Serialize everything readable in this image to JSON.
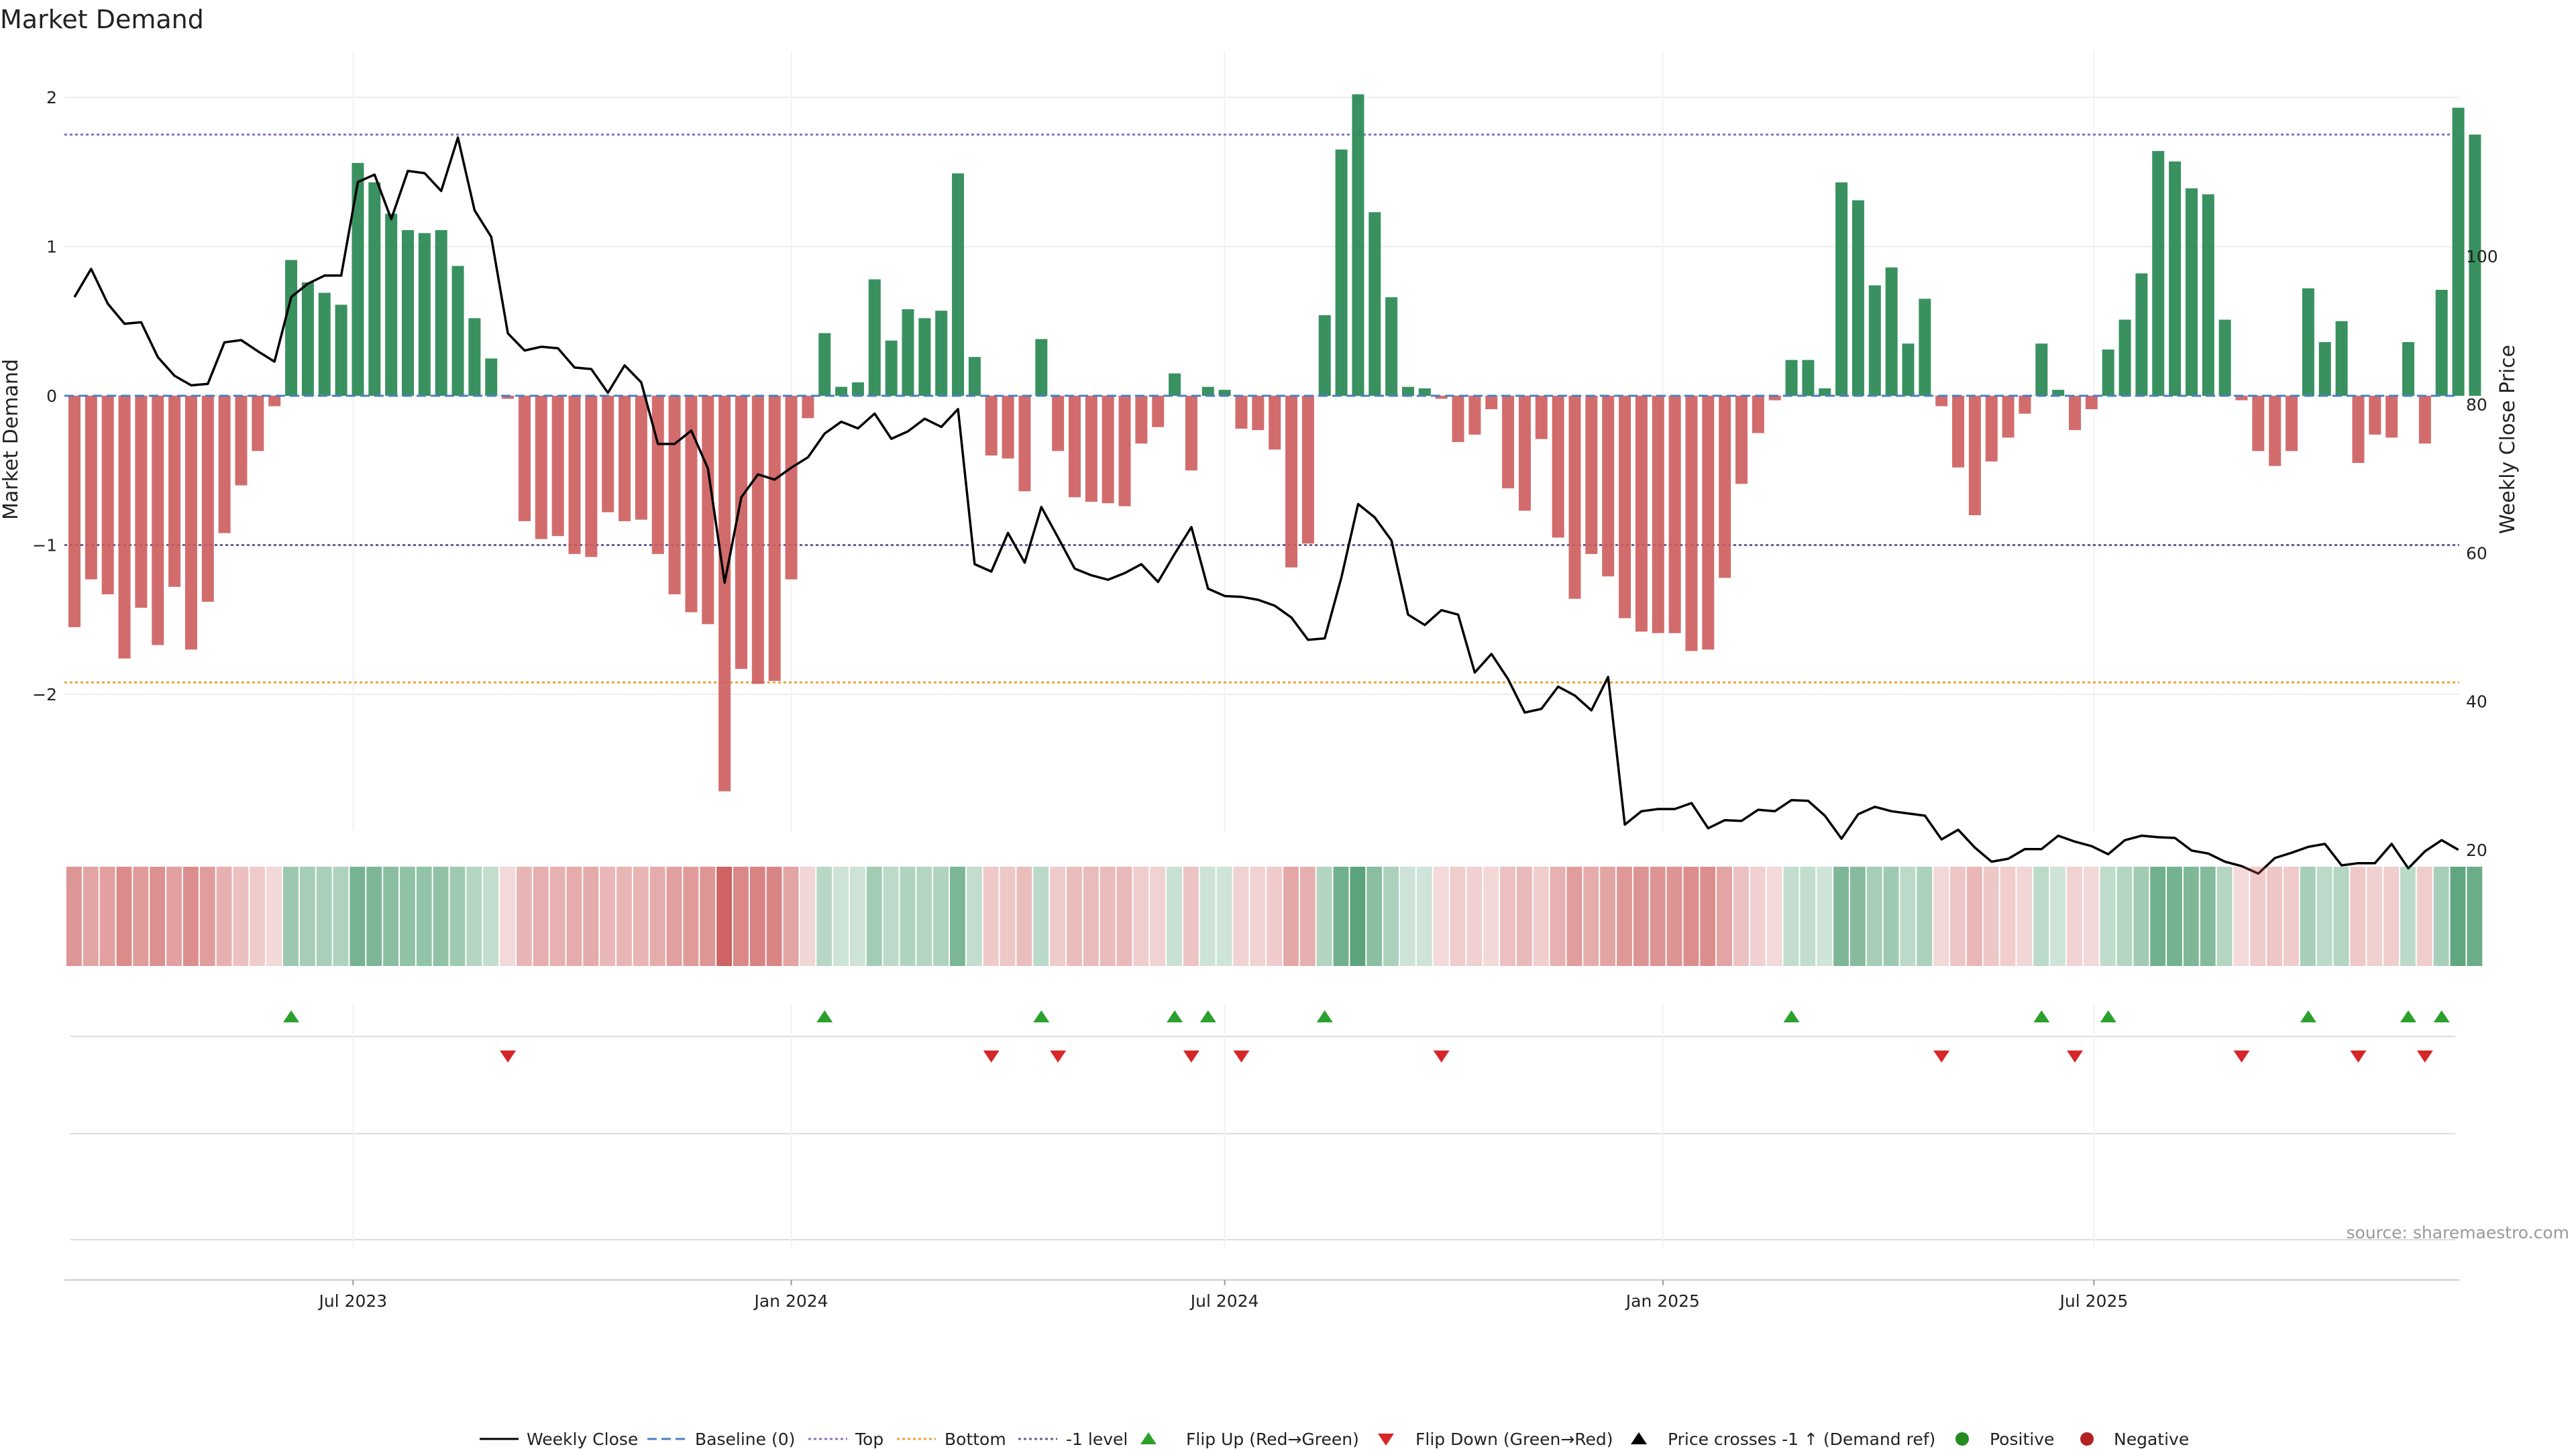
{
  "chart_data": {
    "type": "bar",
    "title": "Market Demand",
    "ylabel": "Market Demand",
    "y2label": "Weekly Close Price",
    "ylim": [
      -2.7,
      2.3
    ],
    "y2lim": [
      13,
      120
    ],
    "yticks": [
      2,
      1,
      0,
      -1,
      -2
    ],
    "ytick_labels": [
      "2",
      "1",
      "0",
      "−1",
      "−2"
    ],
    "y2ticks": [
      100,
      80,
      60,
      40,
      20
    ],
    "y2tick_labels": [
      "100",
      "80",
      "60",
      "40",
      "20"
    ],
    "x_start": "2023-03-06",
    "xticks": [
      {
        "date": "2023-07-01",
        "label": "Jul 2023"
      },
      {
        "date": "2024-01-01",
        "label": "Jan 2024"
      },
      {
        "date": "2024-07-01",
        "label": "Jul 2024"
      },
      {
        "date": "2025-01-01",
        "label": "Jan 2025"
      },
      {
        "date": "2025-07-01",
        "label": "Jul 2025"
      }
    ],
    "reference_lines": {
      "top": 1.75,
      "bottom": -1.92,
      "minus_one_level": -1,
      "baseline": 0
    },
    "demand": [
      -1.55,
      -1.23,
      -1.33,
      -1.76,
      -1.42,
      -1.67,
      -1.28,
      -1.7,
      -1.38,
      -0.92,
      -0.6,
      -0.37,
      -0.07,
      0.91,
      0.76,
      0.69,
      0.61,
      1.56,
      1.43,
      1.22,
      1.11,
      1.09,
      1.11,
      0.87,
      0.52,
      0.25,
      -0.02,
      -0.84,
      -0.96,
      -0.94,
      -1.06,
      -1.08,
      -0.78,
      -0.84,
      -0.83,
      -1.06,
      -1.33,
      -1.45,
      -1.53,
      -2.65,
      -1.83,
      -1.93,
      -1.91,
      -1.23,
      -0.15,
      0.42,
      0.06,
      0.09,
      0.78,
      0.37,
      0.58,
      0.52,
      0.57,
      1.49,
      0.26,
      -0.4,
      -0.42,
      -0.64,
      0.38,
      -0.37,
      -0.68,
      -0.71,
      -0.72,
      -0.74,
      -0.32,
      -0.21,
      0.15,
      -0.5,
      0.06,
      0.04,
      -0.22,
      -0.23,
      -0.36,
      -1.15,
      -0.99,
      0.54,
      1.65,
      2.02,
      1.23,
      0.66,
      0.06,
      0.05,
      -0.02,
      -0.31,
      -0.26,
      -0.09,
      -0.62,
      -0.77,
      -0.29,
      -0.95,
      -1.36,
      -1.06,
      -1.21,
      -1.49,
      -1.58,
      -1.59,
      -1.59,
      -1.71,
      -1.7,
      -1.22,
      -0.59,
      -0.25,
      -0.03,
      0.24,
      0.24,
      0.05,
      1.43,
      1.31,
      0.74,
      0.86,
      0.35,
      0.65,
      -0.07,
      -0.48,
      -0.8,
      -0.44,
      -0.28,
      -0.12,
      0.35,
      0.04,
      -0.23,
      -0.09,
      0.31,
      0.51,
      0.82,
      1.64,
      1.57,
      1.39,
      1.35,
      0.51,
      -0.03,
      -0.37,
      -0.47,
      -0.37,
      0.72,
      0.36,
      0.5,
      -0.45,
      -0.26,
      -0.28,
      0.36,
      -0.32,
      0.71,
      1.93,
      1.75
    ],
    "weekly_close": [
      94.5,
      98.3,
      93.6,
      90.9,
      91.1,
      86.4,
      83.9,
      82.6,
      82.8,
      88.4,
      88.7,
      87.2,
      85.8,
      94.5,
      96.3,
      97.4,
      97.4,
      110,
      111,
      105,
      111.5,
      111.2,
      108.8,
      116,
      106.2,
      102.6,
      89.6,
      87.3,
      87.8,
      87.6,
      85,
      84.8,
      81.6,
      85.3,
      83,
      74.7,
      74.7,
      76.5,
      71.4,
      56,
      67.5,
      70.6,
      69.9,
      71.5,
      72.9,
      76.1,
      77.7,
      76.8,
      78.8,
      75.4,
      76.4,
      78.1,
      77,
      79.4,
      58.5,
      57.5,
      62.7,
      58.7,
      66.2,
      62.1,
      57.9,
      57,
      56.4,
      57.3,
      58.5,
      56.1,
      59.9,
      63.5,
      55.2,
      54.2,
      54.1,
      53.7,
      52.9,
      51.3,
      48.3,
      48.5,
      56.7,
      66.6,
      64.8,
      61.7,
      51.7,
      50.3,
      52.3,
      51.7,
      43.9,
      46.4,
      43,
      38.5,
      39,
      42,
      40.8,
      38.8,
      43.3,
      23.4,
      25.2,
      25.5,
      25.5,
      26.3,
      22.9,
      24,
      23.9,
      25.4,
      25.2,
      26.7,
      26.6,
      24.6,
      21.5,
      24.8,
      25.8,
      25.2,
      24.9,
      24.6,
      21.4,
      22.7,
      20.3,
      18.4,
      18.8,
      20.1,
      20.1,
      21.9,
      21.1,
      20.5,
      19.4,
      21.3,
      21.9,
      21.7,
      21.6,
      19.9,
      19.5,
      18.4,
      17.8,
      16.8,
      18.9,
      19.6,
      20.4,
      20.8,
      17.9,
      18.2,
      18.2,
      20.8,
      17.5,
      19.8,
      21.3,
      20
    ]
  },
  "legend": {
    "weekly_close": "Weekly Close",
    "baseline": "Baseline (0)",
    "top": "Top",
    "bottom": "Bottom",
    "minus_one_level": "-1 level",
    "flip_up": "Flip Up (Red→Green)",
    "flip_down": "Flip Down (Green→Red)",
    "price_cross": "Price crosses -1 ↑ (Demand ref)",
    "positive": "Positive",
    "negative": "Negative"
  },
  "colors": {
    "positive": "#2e8b57",
    "negative": "#cd5c5c",
    "line": "#000000",
    "baseline": "#4a7fc0",
    "top": "#8a6fc9",
    "bottom": "#f0a030",
    "minus_one": "#6a5a9a",
    "flip_up": "#2ca02c",
    "flip_down": "#d62728",
    "legend_positive": "#228b22",
    "legend_negative": "#b22222"
  },
  "source": "source: sharemaestro.com"
}
